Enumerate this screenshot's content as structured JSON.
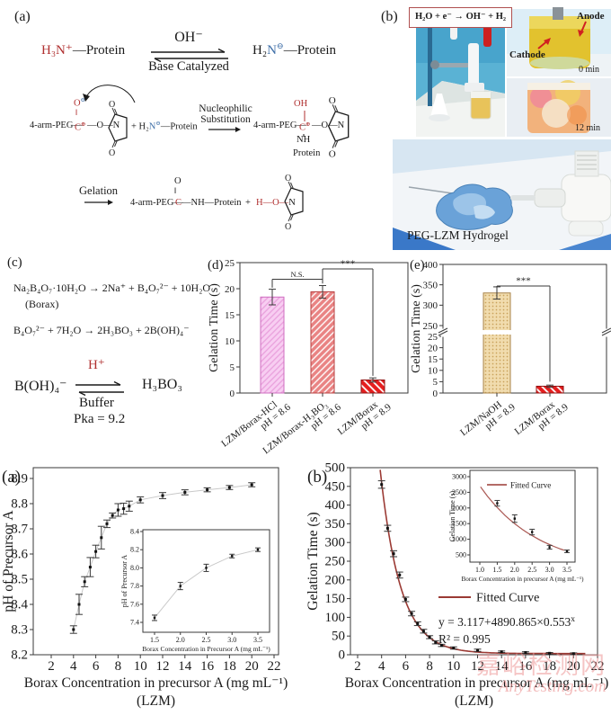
{
  "colors": {
    "axis": "#3a3a3a",
    "fit_curve": "#9b3a34",
    "gray_curve": "#c9c9c9",
    "red_text": "#b03030",
    "blue_text": "#4070a8",
    "bar_pink": "#f8cef2",
    "bar_salmon": "#e98383",
    "bar_red": "#e51f1f",
    "bar_tan": "#f1dcae"
  },
  "panel_a": {
    "label": "(a)",
    "rxn1": {
      "ammonium": "H₃N⁺",
      "ammonium_rest": "—Protein",
      "oh": "OH⁻",
      "base": "Base Catalyzed",
      "amine_pre": "H₂",
      "amine_n": "N",
      "amine_chg": "⊖",
      "amine_rest": "—Protein"
    },
    "rxn2": {
      "peg": "4-arm-PEG—",
      "o": "O",
      "o_chg": "⊖",
      "dbond": "‖",
      "c": "C",
      "c_chg": "⊕",
      "link": "—O—N",
      "plus": "+",
      "amine_pre": "H₂",
      "amine_n": "N",
      "amine_chg": "⊖",
      "amine_rest": "—Protein",
      "nuc1": "Nucleophilic",
      "nuc2": "Substitution",
      "oh": "OH",
      "nh": "NH",
      "protein": "Protein"
    },
    "rxn3": {
      "gelation": "Gelation",
      "o": "O",
      "dbond": "‖",
      "peg": "4-arm-PEG—",
      "c": "C",
      "rest": "—NH—Protein",
      "plus": "+",
      "h": "H",
      "o_link": "—O—",
      "n": "N"
    }
  },
  "panel_b": {
    "label": "(b)",
    "equation": "H₂O + e⁻ → OH⁻ + H₂",
    "cathode": "Cathode",
    "anode": "Anode",
    "t0": "0 min",
    "t12": "12 min",
    "caption": "PEG-LZM Hydrogel"
  },
  "panel_c": {
    "label": "(c)",
    "eq1": "Na₂B₄O₇·10H₂O → 2Na⁺ + B₄O₇²⁻ + 10H₂O",
    "borax": "(Borax)",
    "eq2": "B₄O₇²⁻ + 7H₂O → 2H₃BO₃ + 2B(OH)₄⁻",
    "left3": "B(OH)₄⁻",
    "hplus": "H⁺",
    "right3": "H₃BO₃",
    "buffer": "Buffer",
    "pka": "Pka = 9.2"
  },
  "watermark": {
    "cn": "嘉峪检测网",
    "en": "AnyTesting.com"
  },
  "chart_data": [
    {
      "id": "chart-d",
      "type": "bar",
      "panel_label": "(d)",
      "ylabel": "Gelation Time (s)",
      "ylim": [
        0,
        25
      ],
      "yticks": [
        0,
        5,
        10,
        15,
        20,
        25
      ],
      "categories": [
        [
          "LZM/Borax-HCl",
          "pH = 8.6"
        ],
        [
          "LZM/Borax-H₃BO₃",
          "pH = 8.6"
        ],
        [
          "LZM/Borax",
          "pH = 8.9"
        ]
      ],
      "values": [
        18.4,
        19.4,
        2.5
      ],
      "errors": [
        1.5,
        1.2,
        0.4
      ],
      "bar_styles": [
        "patPink",
        "patSalmon",
        "patRed"
      ],
      "bar_strokes": [
        "#cf6ec0",
        "#b84040",
        "#8f1010"
      ],
      "annotations": [
        {
          "label": "N.S.",
          "from": 0,
          "to": 1,
          "y": 21.8,
          "dropLeft": 20.2,
          "dropRight": 21.0
        },
        {
          "label": "***",
          "from": 1,
          "to": 2,
          "y": 23.8,
          "dropLeft": 21.4,
          "dropRight": 3.3
        }
      ]
    },
    {
      "id": "chart-e",
      "type": "bar",
      "panel_label": "(e)",
      "ylabel": "Gelation Time (s)",
      "broken_axis": true,
      "lower": {
        "lim": [
          0,
          25
        ],
        "ticks": [
          0,
          5,
          10,
          15,
          20,
          25
        ]
      },
      "upper": {
        "lim": [
          250,
          400
        ],
        "ticks": [
          250,
          300,
          350,
          400
        ]
      },
      "categories": [
        [
          "LZM/NaOH",
          "pH = 8.9"
        ],
        [
          "LZM/Borax",
          "pH = 8.9"
        ]
      ],
      "values": [
        330,
        3
      ],
      "errors": [
        15,
        0.5
      ],
      "bar_styles": [
        "patTan",
        "patRed"
      ],
      "bar_strokes": [
        "#a8834a",
        "#8f1010"
      ],
      "annotations": [
        {
          "label": "***",
          "from": 0,
          "to": 1,
          "y": 347,
          "dropLeft": 345,
          "dropRight": 5
        }
      ]
    },
    {
      "id": "chart-f",
      "type": "scatter",
      "panel_label": "(a)",
      "xlabel": "Borax Concentration in precursor A (mg mL⁻¹)",
      "xlabel2": "(LZM)",
      "ylabel": "pH of Precursor A",
      "xlim": [
        1,
        22.6
      ],
      "ylim": [
        8.2,
        8.94
      ],
      "xticks": [
        2,
        4,
        6,
        8,
        10,
        12,
        14,
        16,
        18,
        20,
        22
      ],
      "ytick_labels": [
        "8.2",
        "8.3",
        "8.4",
        "8.5",
        "8.6",
        "8.7",
        "8.8",
        "8.9"
      ],
      "points": [
        [
          4,
          8.3,
          0.015
        ],
        [
          4.5,
          8.4,
          0.04
        ],
        [
          5,
          8.49,
          0.02
        ],
        [
          5.5,
          8.548,
          0.038
        ],
        [
          6,
          8.61,
          0.025
        ],
        [
          6.5,
          8.665,
          0.045
        ],
        [
          7,
          8.72,
          0.015
        ],
        [
          7.5,
          8.753,
          0.01
        ],
        [
          8,
          8.775,
          0.025
        ],
        [
          8.5,
          8.78,
          0.022
        ],
        [
          9,
          8.79,
          0.02
        ],
        [
          10,
          8.815,
          0.012
        ],
        [
          12,
          8.832,
          0.012
        ],
        [
          14,
          8.845,
          0.01
        ],
        [
          16,
          8.855,
          0.008
        ],
        [
          18,
          8.864,
          0.008
        ],
        [
          20,
          8.875,
          0.008
        ]
      ],
      "inset": {
        "xlabel": "Borax Concentration in Precursor A (mg mL⁻¹)",
        "ylabel": "pH of Precursor A",
        "xtick_labels": [
          "1.5",
          "2.0",
          "2.5",
          "3.0",
          "3.5"
        ],
        "ytick_labels": [
          "7.4",
          "7.6",
          "7.8",
          "8.0",
          "8.2",
          "8.4"
        ],
        "points": [
          [
            1.5,
            7.45,
            0.03
          ],
          [
            2.0,
            7.8,
            0.04
          ],
          [
            2.5,
            8.0,
            0.04
          ],
          [
            3.0,
            8.13,
            0.02
          ],
          [
            3.5,
            8.2,
            0.02
          ]
        ]
      }
    },
    {
      "id": "chart-g",
      "type": "scatter",
      "panel_label": "(b)",
      "xlabel": "Borax Concentration in precursor A (mg mL⁻¹)",
      "xlabel2": "(LZM)",
      "ylabel": "Gelation Time (s)",
      "xticks": [
        2,
        4,
        6,
        8,
        10,
        12,
        14,
        16,
        18,
        20,
        22
      ],
      "yticks": [
        0,
        50,
        100,
        150,
        200,
        250,
        300,
        350,
        400,
        450,
        500
      ],
      "points": [
        [
          4,
          455,
          10
        ],
        [
          4.5,
          338,
          8
        ],
        [
          5,
          270,
          8
        ],
        [
          5.5,
          213,
          8
        ],
        [
          6,
          148,
          6
        ],
        [
          6.5,
          110,
          6
        ],
        [
          7,
          83,
          5
        ],
        [
          7.5,
          63,
          5
        ],
        [
          8,
          47,
          4
        ],
        [
          8.5,
          33,
          4
        ],
        [
          9,
          25,
          3
        ],
        [
          10,
          18,
          3
        ],
        [
          12,
          12,
          3
        ],
        [
          14,
          8,
          2
        ],
        [
          16,
          6,
          2
        ],
        [
          18,
          4,
          2
        ],
        [
          20,
          3,
          2
        ]
      ],
      "fit": {
        "label": "Fitted Curve",
        "equation_base": "y = 3.117+4890.865×0.553",
        "equation_sup": "x",
        "r2": "R² = 0.995",
        "a": 3.117,
        "b": 4890.865,
        "c": 0.553
      },
      "inset": {
        "legend": "Fitted Curve",
        "xlabel": "Borax Concentration in precursor A (mg mL⁻¹)",
        "ylabel": "Gelation Time (s)",
        "xtick_labels": [
          "1.0",
          "1.5",
          "2.0",
          "2.5",
          "3.0",
          "3.5"
        ],
        "ytick_labels": [
          "500",
          "1000",
          "1500",
          "2000",
          "2500",
          "3000"
        ],
        "points": [
          [
            1.5,
            2150,
            90
          ],
          [
            2.0,
            1660,
            120
          ],
          [
            2.5,
            1230,
            90
          ],
          [
            3.0,
            745,
            60
          ],
          [
            3.5,
            615,
            40
          ]
        ]
      }
    }
  ]
}
